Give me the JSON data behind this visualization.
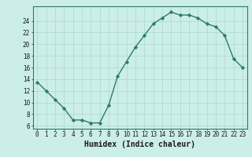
{
  "x": [
    0,
    1,
    2,
    3,
    4,
    5,
    6,
    7,
    8,
    9,
    10,
    11,
    12,
    13,
    14,
    15,
    16,
    17,
    18,
    19,
    20,
    21,
    22,
    23
  ],
  "y": [
    13.5,
    12.0,
    10.5,
    9.0,
    7.0,
    7.0,
    6.5,
    6.5,
    9.5,
    14.5,
    17.0,
    19.5,
    21.5,
    23.5,
    24.5,
    25.5,
    25.0,
    25.0,
    24.5,
    23.5,
    23.0,
    21.5,
    17.5,
    16.0
  ],
  "line_color": "#2d7a6e",
  "marker": "D",
  "markersize": 2.2,
  "linewidth": 1.0,
  "xlabel": "Humidex (Indice chaleur)",
  "xlabel_fontsize": 7,
  "xlim": [
    -0.5,
    23.5
  ],
  "ylim": [
    5.5,
    26.5
  ],
  "yticks": [
    6,
    8,
    10,
    12,
    14,
    16,
    18,
    20,
    22,
    24
  ],
  "xticks": [
    0,
    1,
    2,
    3,
    4,
    5,
    6,
    7,
    8,
    9,
    10,
    11,
    12,
    13,
    14,
    15,
    16,
    17,
    18,
    19,
    20,
    21,
    22,
    23
  ],
  "bg_color": "#cceee8",
  "grid_color": "#aad8d0",
  "tick_fontsize": 5.5,
  "spine_color": "#2d7a6e"
}
